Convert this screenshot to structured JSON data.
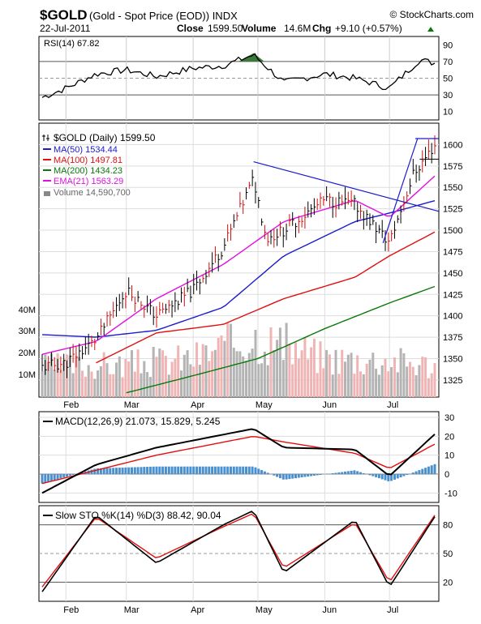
{
  "header": {
    "symbol": "$GOLD",
    "name": "(Gold - Spot Price (EOD)) INDX",
    "site": "© StockCharts.com",
    "date": "22-Jul-2011",
    "close_label": "Close",
    "close": "1599.50",
    "volume_label": "Volume",
    "volume": "14.6M",
    "chg_label": "Chg",
    "chg": "+9.10 (+0.57%)"
  },
  "colors": {
    "price": "#000000",
    "ma50": "#1c1ccc",
    "ma100": "#e01010",
    "ma200": "#0a780a",
    "ema21": "#e010e0",
    "volume_up": "#b4b4b4",
    "volume_down": "#f0b4b4",
    "rsi_fill": "#3c7a3c",
    "macd_hist": "#4a90cc",
    "trend": "#1c1ccc"
  },
  "chart_data": [
    {
      "panel": "rsi",
      "type": "line",
      "legend": "RSI(14) 67.82",
      "yticks": [
        10,
        30,
        50,
        70,
        90
      ],
      "ylim": [
        0,
        100
      ],
      "reference_lines": [
        30,
        70
      ],
      "x": [
        "2011-01-21",
        "2011-02-01",
        "2011-02-15",
        "2011-03-01",
        "2011-03-15",
        "2011-04-01",
        "2011-04-15",
        "2011-04-29",
        "2011-05-13",
        "2011-06-01",
        "2011-06-15",
        "2011-07-01",
        "2011-07-15",
        "2011-07-22"
      ],
      "values": [
        27,
        38,
        55,
        60,
        52,
        62,
        65,
        78,
        45,
        55,
        50,
        38,
        72,
        68
      ]
    },
    {
      "panel": "price",
      "type": "line",
      "title": "$GOLD (Daily) 1599.50",
      "x_ticks": [
        "Feb",
        "Mar",
        "Apr",
        "May",
        "Jun",
        "Jul"
      ],
      "yticks": [
        1325,
        1350,
        1375,
        1400,
        1425,
        1450,
        1475,
        1500,
        1525,
        1550,
        1575,
        1600
      ],
      "ylim": [
        1305,
        1625
      ],
      "volume_ticks": [
        "10M",
        "20M",
        "30M",
        "40M"
      ],
      "series": [
        {
          "name": "$GOLD (Daily) 1599.50",
          "x": [
            "2011-01-21",
            "2011-02-01",
            "2011-02-15",
            "2011-03-01",
            "2011-03-15",
            "2011-04-01",
            "2011-04-15",
            "2011-04-29",
            "2011-05-05",
            "2011-05-13",
            "2011-06-01",
            "2011-06-15",
            "2011-07-01",
            "2011-07-12",
            "2011-07-22"
          ],
          "values": [
            1340,
            1345,
            1372,
            1430,
            1400,
            1430,
            1480,
            1560,
            1490,
            1500,
            1535,
            1530,
            1485,
            1565,
            1599.5
          ]
        },
        {
          "name": "MA(50) 1534.44",
          "x": [
            "2011-01-21",
            "2011-02-15",
            "2011-03-15",
            "2011-04-15",
            "2011-05-13",
            "2011-06-15",
            "2011-07-01",
            "2011-07-22"
          ],
          "values": [
            1378,
            1375,
            1383,
            1410,
            1470,
            1510,
            1520,
            1534.44
          ]
        },
        {
          "name": "MA(100) 1497.81",
          "x": [
            "2011-02-15",
            "2011-03-15",
            "2011-04-15",
            "2011-05-13",
            "2011-06-15",
            "2011-07-01",
            "2011-07-22"
          ],
          "values": [
            1345,
            1380,
            1390,
            1420,
            1445,
            1470,
            1497.81
          ]
        },
        {
          "name": "MA(200) 1434.23",
          "x": [
            "2011-03-01",
            "2011-04-01",
            "2011-05-01",
            "2011-06-01",
            "2011-07-01",
            "2011-07-22"
          ],
          "values": [
            1310,
            1330,
            1350,
            1385,
            1415,
            1434.23
          ]
        },
        {
          "name": "EMA(21) 1563.29",
          "x": [
            "2011-01-21",
            "2011-02-15",
            "2011-03-15",
            "2011-04-15",
            "2011-05-13",
            "2011-06-15",
            "2011-07-01",
            "2011-07-22"
          ],
          "values": [
            1355,
            1370,
            1420,
            1460,
            1510,
            1535,
            1515,
            1563.29
          ]
        },
        {
          "name": "Volume 14,590,700",
          "x": [
            "2011-01-21",
            "2011-03-01",
            "2011-04-01",
            "2011-04-29",
            "2011-06-01",
            "2011-07-01",
            "2011-07-22"
          ],
          "values": [
            14000000,
            15000000,
            18000000,
            28000000,
            18000000,
            17000000,
            14590700
          ]
        }
      ]
    },
    {
      "panel": "macd",
      "type": "line",
      "legend": "MACD(12,26,9) 21.073, 15.829, 5.245",
      "yticks": [
        -10,
        0,
        10,
        20,
        30
      ],
      "series": [
        {
          "name": "MACD(12,26,9) 21.073",
          "x": [
            "2011-01-21",
            "2011-02-15",
            "2011-03-15",
            "2011-04-29",
            "2011-05-13",
            "2011-06-15",
            "2011-07-01",
            "2011-07-22"
          ],
          "values": [
            -10,
            5,
            14,
            24,
            14,
            13,
            -1,
            21.073
          ]
        },
        {
          "name": "15.829",
          "x": [
            "2011-01-21",
            "2011-02-15",
            "2011-03-15",
            "2011-04-29",
            "2011-05-13",
            "2011-06-15",
            "2011-07-01",
            "2011-07-22"
          ],
          "values": [
            -5,
            2,
            10,
            20,
            17,
            11,
            3,
            15.829
          ]
        },
        {
          "name": "5.245",
          "x": [
            "2011-01-21",
            "2011-02-15",
            "2011-03-15",
            "2011-04-29",
            "2011-05-13",
            "2011-06-15",
            "2011-07-01",
            "2011-07-22"
          ],
          "values": [
            -5,
            3,
            4,
            4,
            -3,
            2,
            -4,
            5.245
          ]
        }
      ]
    },
    {
      "panel": "sto",
      "type": "line",
      "legend": "Slow STO %K(14) %D(3) 88.42, 90.04",
      "yticks": [
        20,
        50,
        80
      ],
      "ylim": [
        0,
        100
      ],
      "series": [
        {
          "name": "%K(14) 88.42",
          "x": [
            "2011-01-21",
            "2011-02-15",
            "2011-03-15",
            "2011-04-15",
            "2011-04-29",
            "2011-05-13",
            "2011-06-15",
            "2011-07-01",
            "2011-07-22"
          ],
          "values": [
            10,
            90,
            40,
            80,
            95,
            30,
            85,
            15,
            88.42
          ]
        },
        {
          "name": "%D(3) 90.04",
          "x": [
            "2011-01-21",
            "2011-02-15",
            "2011-03-15",
            "2011-04-15",
            "2011-04-29",
            "2011-05-13",
            "2011-06-15",
            "2011-07-01",
            "2011-07-22"
          ],
          "values": [
            15,
            88,
            45,
            78,
            92,
            35,
            82,
            20,
            90.04
          ]
        }
      ]
    }
  ]
}
